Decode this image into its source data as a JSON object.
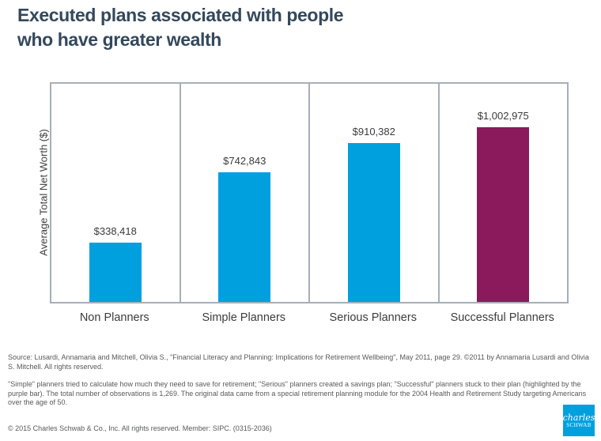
{
  "title": {
    "line1": "Executed plans associated with people",
    "line2_pre": "who have ",
    "line2_emph": "greater",
    "line2_post": " wealth"
  },
  "chart_data": {
    "type": "bar",
    "title": "Executed plans associated with people who have greater wealth",
    "categories": [
      "Non Planners",
      "Simple Planners",
      "Serious Planners",
      "Successful Planners"
    ],
    "values": [
      338418,
      742843,
      910382,
      1002975
    ],
    "value_labels": [
      "$338,418",
      "$742,843",
      "$910,382",
      "$1,002,975"
    ],
    "xlabel": "",
    "ylabel": "Average Total Net Worth ($)",
    "ylim": [
      0,
      1250000
    ],
    "grid": false,
    "legend": false,
    "bar_colors": [
      "#00A0DF",
      "#00A0DF",
      "#00A0DF",
      "#8A1A5C"
    ],
    "annotation": "Successful Planners bar highlighted in purple"
  },
  "colors": {
    "accent_blue": "#00A0DF",
    "highlight_purple": "#8A1A5C",
    "title_text": "#33485C",
    "plot_border": "#A6AFB9",
    "label_text": "#3C3C3C",
    "footnote_text": "#58595B"
  },
  "footer": {
    "source": "Source: Lusardi, Annamaria and Mitchell, Olivia S., \"Financial Literacy and Planning: Implications for Retirement Wellbeing\", May 2011, page 29. ©2011 by Annamaria Lusardi and Olivia S. Mitchell.  All rights reserved.",
    "footnote": "\"Simple\" planners tried to calculate how much they need to save for retirement; \"Serious\" planners created a savings plan; \"Successful\" planners stuck to their plan (highlighted by the purple bar).  The total number of observations is 1,269. The original data came from a special retirement planning module for the 2004 Health and Retirement Study targeting Americans over the age of 50.",
    "copyright": "© 2015 Charles Schwab & Co., Inc. All rights reserved. Member: SIPC. (0315-2036)"
  },
  "logo": {
    "line1": "charles",
    "line2": "SCHWAB"
  }
}
